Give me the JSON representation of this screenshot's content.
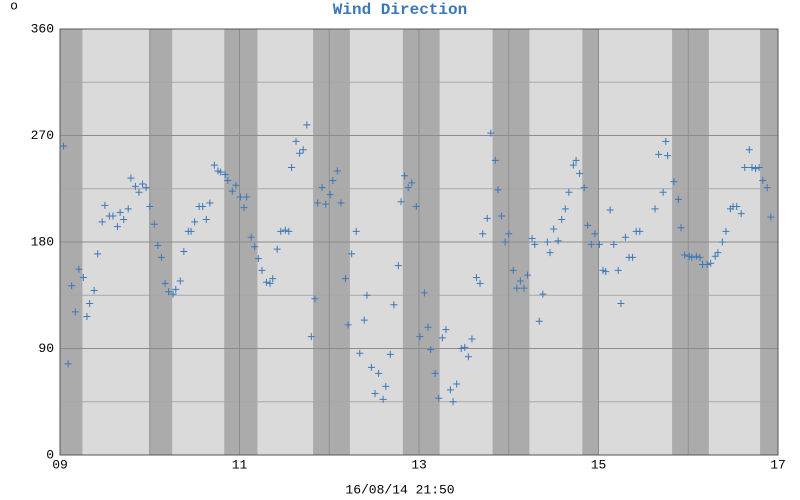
{
  "chart_data": {
    "type": "scatter",
    "title": "Wind Direction",
    "ylabel": "o",
    "xlabel": "16/08/14 21:50",
    "color": "#3b78b9",
    "xlim": [
      9,
      17
    ],
    "xticks": [
      {
        "value": 9,
        "label": "09"
      },
      11,
      13,
      15,
      17
    ],
    "xgrid_minor": [
      10,
      12,
      14,
      16
    ],
    "ylim": [
      0,
      360
    ],
    "yticks": [
      0,
      90,
      180,
      270,
      360
    ],
    "ygrid_minor": [
      45,
      135,
      225,
      315
    ],
    "shaded_x_ranges": [
      [
        9.0,
        9.25
      ],
      [
        10.0,
        10.25
      ],
      [
        10.83,
        11.2
      ],
      [
        11.82,
        12.23
      ],
      [
        12.82,
        13.23
      ],
      [
        13.82,
        14.23
      ],
      [
        14.82,
        15.0
      ],
      [
        15.82,
        16.23
      ],
      [
        16.8,
        17.0
      ]
    ],
    "x": [
      9.04,
      9.09,
      9.13,
      9.17,
      9.21,
      9.26,
      9.3,
      9.33,
      9.38,
      9.42,
      9.47,
      9.5,
      9.55,
      9.59,
      9.64,
      9.67,
      9.71,
      9.76,
      9.79,
      9.84,
      9.88,
      9.92,
      9.96,
      10.0,
      10.05,
      10.09,
      10.13,
      10.17,
      10.21,
      10.26,
      10.29,
      10.34,
      10.38,
      10.43,
      10.46,
      10.5,
      10.55,
      10.59,
      10.63,
      10.67,
      10.72,
      10.76,
      10.79,
      10.84,
      10.87,
      10.92,
      10.96,
      11.01,
      11.05,
      11.08,
      11.13,
      11.17,
      11.21,
      11.25,
      11.3,
      11.34,
      11.37,
      11.42,
      11.46,
      11.51,
      11.55,
      11.58,
      11.63,
      11.67,
      11.71,
      11.75,
      11.8,
      11.84,
      11.87,
      11.92,
      11.96,
      12.01,
      12.04,
      12.09,
      12.13,
      12.18,
      12.21,
      12.25,
      12.3,
      12.34,
      12.39,
      12.42,
      12.47,
      12.51,
      12.55,
      12.6,
      12.63,
      12.68,
      12.72,
      12.77,
      12.8,
      12.84,
      12.88,
      12.92,
      12.97,
      13.01,
      13.06,
      13.1,
      13.13,
      13.18,
      13.22,
      13.26,
      13.3,
      13.35,
      13.38,
      13.42,
      13.47,
      13.51,
      13.55,
      13.59,
      13.64,
      13.68,
      13.71,
      13.76,
      13.8,
      13.85,
      13.88,
      13.92,
      13.96,
      14.0,
      14.05,
      14.09,
      14.13,
      14.17,
      14.21,
      14.26,
      14.29,
      14.34,
      14.38,
      14.43,
      14.46,
      14.5,
      14.55,
      14.59,
      14.63,
      14.67,
      14.72,
      14.75,
      14.79,
      14.84,
      14.88,
      14.92,
      14.96,
      15.01,
      15.05,
      15.08,
      15.13,
      15.17,
      15.22,
      15.25,
      15.3,
      15.34,
      15.38,
      15.42,
      15.46,
      15.63,
      15.67,
      15.72,
      15.75,
      15.77,
      15.84,
      15.89,
      15.92,
      15.96,
      16.01,
      16.04,
      16.09,
      16.13,
      16.16,
      16.21,
      16.25,
      16.3,
      16.33,
      16.38,
      16.42,
      16.47,
      16.5,
      16.54,
      16.59,
      16.63,
      16.68,
      16.71,
      16.75,
      16.79,
      16.83,
      16.88,
      16.92
    ],
    "values": [
      261,
      77,
      143,
      121,
      157,
      150,
      117,
      128,
      139,
      170,
      197,
      211,
      202,
      202,
      193,
      205,
      199,
      208,
      234,
      227,
      222,
      229,
      226,
      210,
      195,
      177,
      167,
      145,
      138,
      136,
      140,
      147,
      172,
      189,
      189,
      197,
      210,
      210,
      199,
      213,
      245,
      240,
      239,
      237,
      232,
      223,
      228,
      218,
      209,
      218,
      184,
      176,
      166,
      156,
      146,
      145,
      149,
      174,
      189,
      190,
      189,
      243,
      265,
      255,
      258,
      279,
      100,
      132,
      213,
      226,
      212,
      220,
      232,
      240,
      213,
      149,
      110,
      170,
      189,
      86,
      114,
      135,
      74,
      52,
      69,
      47,
      58,
      85,
      127,
      160,
      214,
      236,
      226,
      230,
      210,
      100,
      137,
      108,
      89,
      69,
      48,
      99,
      106,
      55,
      45,
      60,
      90,
      91,
      83,
      98,
      150,
      145,
      187,
      200,
      272,
      249,
      224,
      202,
      180,
      187,
      156,
      141,
      147,
      141,
      152,
      183,
      178,
      113,
      136,
      180,
      171,
      191,
      181,
      199,
      208,
      222,
      245,
      249,
      238,
      226,
      194,
      178,
      187,
      178,
      156,
      155,
      207,
      178,
      156,
      128,
      184,
      167,
      167,
      189,
      189,
      208,
      254,
      222,
      265,
      253,
      231,
      216,
      192,
      169,
      168,
      167,
      168,
      167,
      161,
      161,
      162,
      168,
      171,
      180,
      189,
      208,
      210,
      210,
      204,
      243,
      258,
      243,
      242,
      243,
      232,
      226,
      201
    ]
  }
}
